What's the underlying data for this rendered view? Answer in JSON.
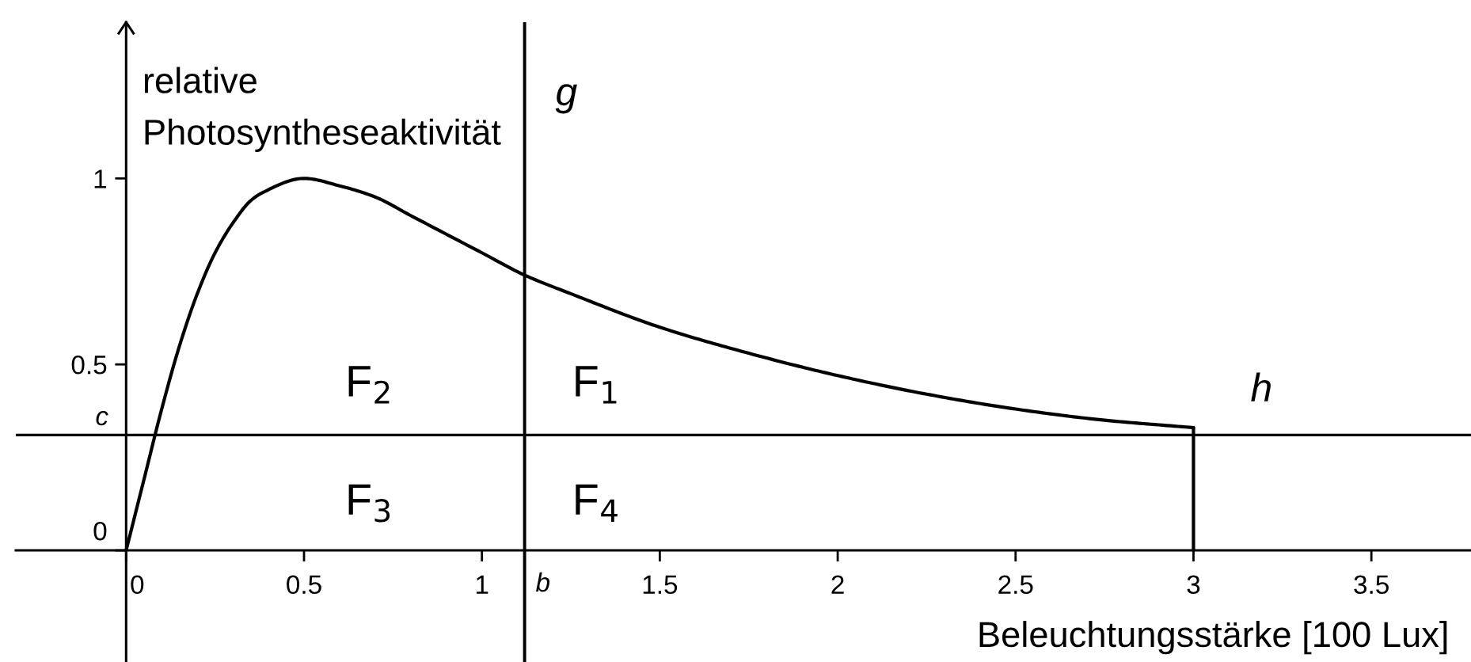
{
  "chart_data": {
    "type": "line",
    "xlabel": "Beleuchtungsstärke [100 Lux]",
    "ylabel": "relative\nPhotosyntheseaktivität",
    "x": [
      0,
      0.05,
      0.1,
      0.15,
      0.2,
      0.25,
      0.3,
      0.35,
      0.38,
      0.5,
      0.6,
      0.7,
      0.8,
      0.9,
      1,
      1.12,
      1.25,
      1.5,
      1.75,
      2,
      2.25,
      2.5,
      2.75,
      3
    ],
    "series": [
      {
        "color": "#000000",
        "values": [
          0,
          0.19,
          0.38,
          0.55,
          0.69,
          0.8,
          0.88,
          0.94,
          0.96,
          1,
          0.98,
          0.95,
          0.9,
          0.85,
          0.8,
          0.74,
          0.69,
          0.6,
          0.53,
          0.47,
          0.42,
          0.38,
          0.35,
          0.33
        ]
      },
      {
        "x": [
          3,
          3
        ],
        "color": "#000000",
        "values": [
          0,
          0.33
        ]
      }
    ],
    "xlim": [
      -0.31,
      3.78
    ],
    "ylim": [
      -0.3,
      1.42
    ],
    "xticks": [
      0,
      0.5,
      1,
      1.5,
      2,
      2.5,
      3,
      3.5
    ],
    "yticks": [
      0,
      0.5,
      1
    ],
    "ref_lines": [
      {
        "axis": "x",
        "value": 1.12,
        "label": "g",
        "color": "#000000"
      },
      {
        "axis": "y",
        "value": 0.31,
        "label": "h",
        "color": "#000000"
      }
    ],
    "annotations": [
      "F$_{2}$",
      "F$_{1}$",
      "F$_{3}$",
      "F$_{4}$",
      {
        "text": "b",
        "x": 1.12,
        "y": 0
      },
      {
        "text": "c",
        "x": 0,
        "y": 0.31
      }
    ]
  }
}
